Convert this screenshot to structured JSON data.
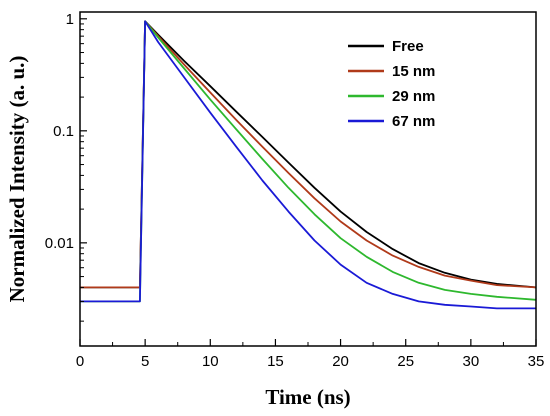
{
  "chart_data": {
    "type": "line",
    "title": "",
    "xlabel": "Time (ns)",
    "ylabel": "Normalized Intensity (a. u.)",
    "xlim": [
      0,
      35
    ],
    "ylim": [
      0.0012,
      1.15
    ],
    "yscale": "log",
    "x_ticks": [
      0,
      5,
      10,
      15,
      20,
      25,
      30,
      35
    ],
    "x_tick_labels": [
      "0",
      "5",
      "10",
      "15",
      "20",
      "25",
      "30",
      "35"
    ],
    "y_ticks": [
      0.01,
      0.1,
      1
    ],
    "y_tick_labels": [
      "0.01",
      "0.1",
      "1"
    ],
    "grid": false,
    "legend_position": "top-right",
    "series": [
      {
        "name": "Free",
        "color": "#000000",
        "x": [
          0,
          4.6,
          5,
          6,
          8,
          10,
          12,
          14,
          16,
          18,
          20,
          22,
          24,
          26,
          28,
          30,
          32,
          35
        ],
        "y": [
          0.004,
          0.004,
          0.95,
          0.72,
          0.42,
          0.25,
          0.148,
          0.088,
          0.052,
          0.031,
          0.019,
          0.0125,
          0.0088,
          0.0066,
          0.0054,
          0.0047,
          0.0043,
          0.004
        ]
      },
      {
        "name": "15 nm",
        "color": "#b03a1a",
        "x": [
          0,
          4.6,
          5,
          6,
          8,
          10,
          12,
          14,
          16,
          18,
          20,
          22,
          24,
          26,
          28,
          30,
          32,
          35
        ],
        "y": [
          0.004,
          0.004,
          0.95,
          0.7,
          0.39,
          0.22,
          0.125,
          0.072,
          0.042,
          0.025,
          0.0155,
          0.0105,
          0.0077,
          0.0061,
          0.0051,
          0.0046,
          0.0042,
          0.004
        ]
      },
      {
        "name": "29 nm",
        "color": "#2eb82e",
        "x": [
          0,
          4.6,
          5,
          6,
          8,
          10,
          12,
          14,
          16,
          18,
          20,
          22,
          24,
          26,
          28,
          30,
          32,
          35
        ],
        "y": [
          0.003,
          0.003,
          0.95,
          0.68,
          0.36,
          0.19,
          0.103,
          0.056,
          0.031,
          0.018,
          0.011,
          0.0075,
          0.0055,
          0.0044,
          0.0038,
          0.0035,
          0.0033,
          0.0031
        ]
      },
      {
        "name": "67 nm",
        "color": "#1a1ad6",
        "x": [
          0,
          4.6,
          5,
          6,
          8,
          10,
          12,
          14,
          16,
          18,
          20,
          22,
          24,
          26,
          28,
          30,
          32,
          35
        ],
        "y": [
          0.003,
          0.003,
          0.95,
          0.62,
          0.3,
          0.145,
          0.072,
          0.036,
          0.019,
          0.0105,
          0.0064,
          0.0044,
          0.0035,
          0.003,
          0.0028,
          0.0027,
          0.0026,
          0.0026
        ]
      }
    ]
  }
}
